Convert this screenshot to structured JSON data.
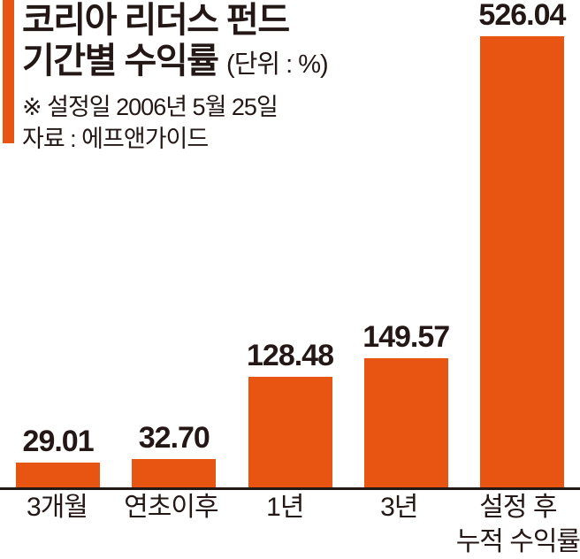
{
  "colors": {
    "accent": "#E85512",
    "text": "#231815",
    "background": "#FFFFFF"
  },
  "header": {
    "title_line1": "코리아 리더스 펀드",
    "title_line2": "기간별 수익률",
    "unit_label": "(단위 : %)",
    "note": "※  설정일 2006년 5월 25일",
    "source": "자료 : 에프앤가이드"
  },
  "chart_data": {
    "type": "bar",
    "title": "코리아 리더스 펀드 기간별 수익률",
    "unit": "%",
    "categories": [
      "3개월",
      "연초이후",
      "1년",
      "3년",
      "설정 후 누적 수익률"
    ],
    "category_lines": [
      [
        "3개월"
      ],
      [
        "연초이후"
      ],
      [
        "1년"
      ],
      [
        "3년"
      ],
      [
        "설정 후",
        "누적 수익률"
      ]
    ],
    "values": [
      29.01,
      32.7,
      128.48,
      149.57,
      526.04
    ],
    "value_labels": [
      "29.01",
      "32.70",
      "128.48",
      "149.57",
      "526.04"
    ],
    "bar_color": "#E85512",
    "ylim": [
      0,
      540
    ],
    "grid": false,
    "legend_position": "none",
    "note": "설정일 2006년 5월 25일",
    "source": "에프앤가이드"
  }
}
